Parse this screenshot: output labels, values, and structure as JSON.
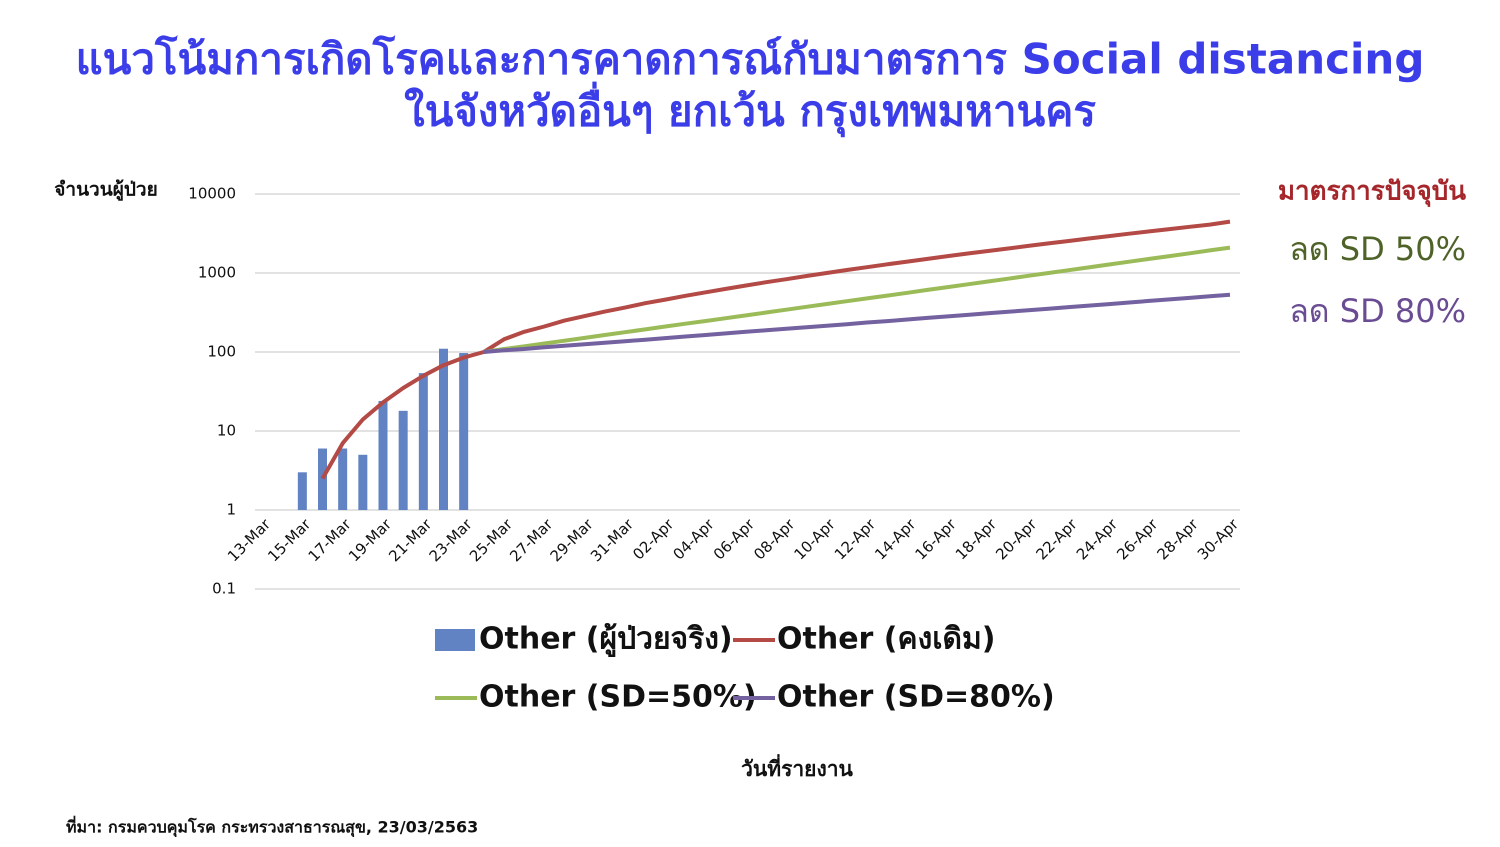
{
  "chart_data": {
    "type": "combo",
    "title": "แนวโน้มการเกิดโรคและการคาดการณ์กับมาตรการ Social distancing",
    "subtitle": "ในจังหวัดอื่นๆ ยกเว้น กรุงเทพมหานคร",
    "y_axis_label": "จำนวนผู้ป่วย",
    "x_axis_label": "วันที่รายงาน",
    "source": "ที่มา: กรมควบคุมโรค กระทรวงสาธารณสุข, 23/03/2563",
    "log_scale": true,
    "grid": true,
    "ylim": [
      0.1,
      10000
    ],
    "yticks": [
      0.1,
      1,
      10,
      100,
      1000,
      10000
    ],
    "categories": [
      "13-Mar",
      null,
      "15-Mar",
      null,
      "17-Mar",
      null,
      "19-Mar",
      null,
      "21-Mar",
      null,
      "23-Mar",
      null,
      "25-Mar",
      null,
      "27-Mar",
      null,
      "29-Mar",
      null,
      "31-Mar",
      null,
      "02-Apr",
      null,
      "04-Apr",
      null,
      "06-Apr",
      null,
      "08-Apr",
      null,
      "10-Apr",
      null,
      "12-Apr",
      null,
      "14-Apr",
      null,
      "16-Apr",
      null,
      "18-Apr",
      null,
      "20-Apr",
      null,
      "22-Apr",
      null,
      "24-Apr",
      null,
      "26-Apr",
      null,
      "28-Apr",
      null,
      "30-Apr"
    ],
    "series": [
      {
        "name": "Other (ผู้ป่วยจริง)",
        "type": "bar",
        "color": "#6182c3",
        "values": [
          null,
          null,
          3,
          6,
          6,
          5,
          24,
          18,
          54,
          110,
          97,
          null,
          null,
          null,
          null,
          null,
          null,
          null,
          null,
          null,
          null,
          null,
          null,
          null,
          null,
          null,
          null,
          null,
          null,
          null,
          null,
          null,
          null,
          null,
          null,
          null,
          null,
          null,
          null,
          null,
          null,
          null,
          null,
          null,
          null,
          null,
          null,
          null,
          null
        ]
      },
      {
        "name": "Other (คงเดิม)",
        "type": "line",
        "color": "#b34a45",
        "values": [
          null,
          null,
          null,
          2.5,
          7,
          14,
          23,
          35,
          50,
          68,
          85,
          100,
          145,
          180,
          210,
          250,
          285,
          325,
          365,
          415,
          460,
          515,
          570,
          630,
          695,
          765,
          835,
          915,
          1000,
          1090,
          1185,
          1290,
          1395,
          1510,
          1635,
          1765,
          1900,
          2045,
          2205,
          2370,
          2545,
          2735,
          2930,
          3140,
          3365,
          3600,
          3845,
          4100,
          4470
        ]
      },
      {
        "name": "Other (SD=50%)",
        "type": "line",
        "color": "#9bbb59",
        "values": [
          null,
          null,
          null,
          null,
          null,
          null,
          null,
          null,
          null,
          null,
          null,
          100,
          109,
          118,
          128,
          139,
          151,
          164,
          178,
          193,
          210,
          228,
          247,
          268,
          291,
          316,
          343,
          373,
          405,
          440,
          477,
          518,
          562,
          611,
          663,
          720,
          781,
          848,
          921,
          1000,
          1086,
          1179,
          1280,
          1390,
          1509,
          1638,
          1778,
          1931,
          2097
        ]
      },
      {
        "name": "Other (SD=80%)",
        "type": "line",
        "color": "#7461a0",
        "values": [
          null,
          null,
          null,
          null,
          null,
          null,
          null,
          null,
          null,
          null,
          null,
          100,
          105,
          109,
          115,
          120,
          125,
          131,
          137,
          143,
          150,
          157,
          164,
          172,
          180,
          188,
          197,
          206,
          215,
          225,
          236,
          246,
          258,
          270,
          282,
          295,
          309,
          323,
          338,
          353,
          370,
          387,
          404,
          423,
          443,
          463,
          484,
          507,
          530
        ]
      }
    ],
    "annotations": [
      {
        "text": "มาตรการปัจจุบัน",
        "color": "#a5262b"
      },
      {
        "text": "ลด SD 50%",
        "color": "#4f6228"
      },
      {
        "text": "ลด SD 80%",
        "color": "#6a4c93"
      }
    ]
  }
}
